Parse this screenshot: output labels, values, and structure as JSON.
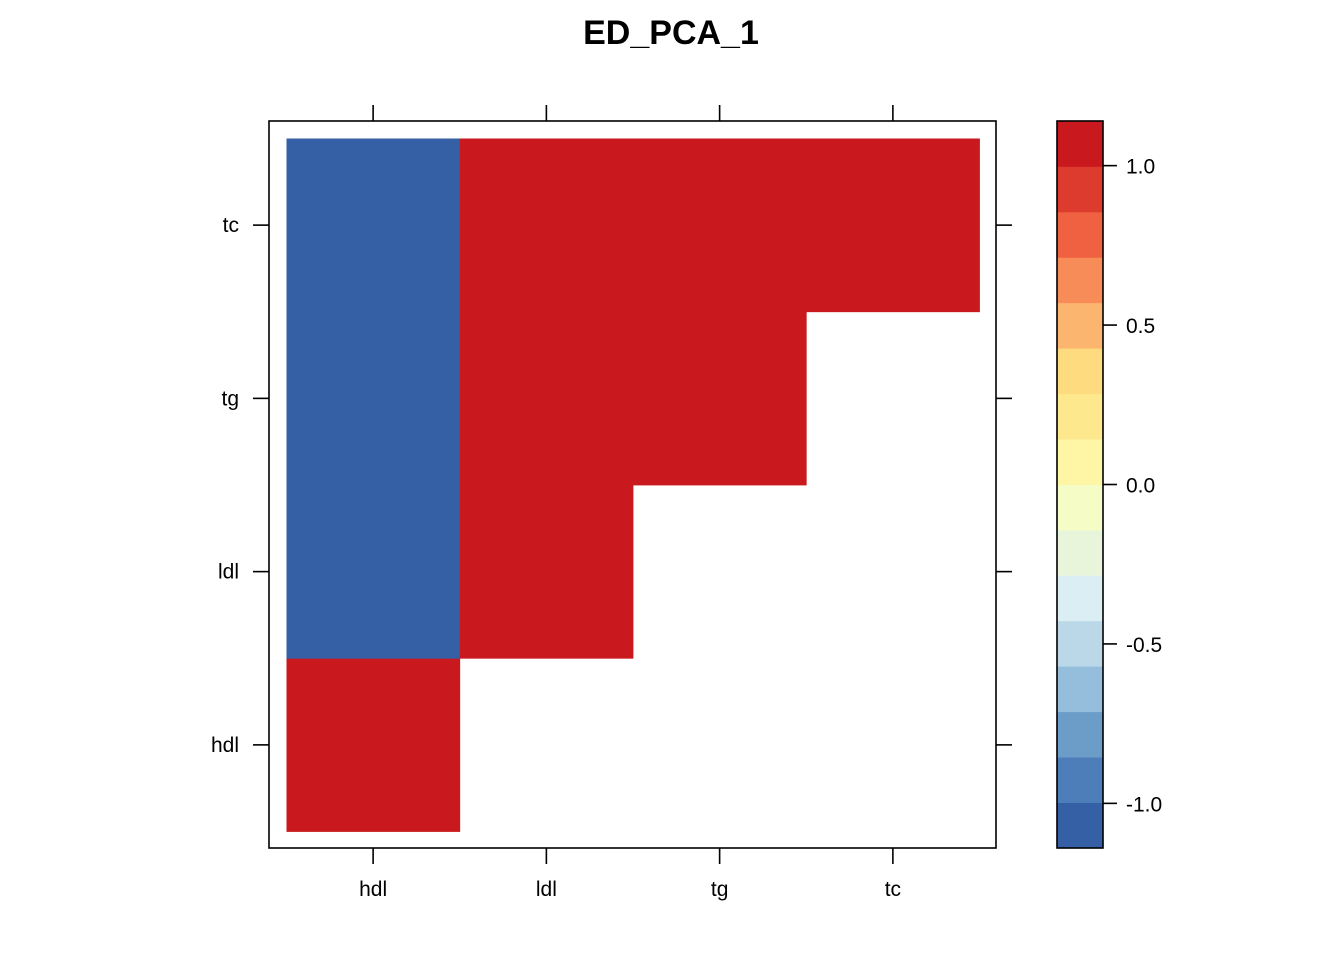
{
  "chart_data": {
    "type": "heatmap",
    "title": "ED_PCA_1",
    "xlabel": "",
    "ylabel": "",
    "x_categories": [
      "hdl",
      "ldl",
      "tg",
      "tc"
    ],
    "y_categories": [
      "hdl",
      "ldl",
      "tg",
      "tc"
    ],
    "cells": [
      {
        "x": "hdl",
        "y": "hdl",
        "value": 1
      },
      {
        "x": "hdl",
        "y": "ldl",
        "value": -1
      },
      {
        "x": "hdl",
        "y": "tg",
        "value": -1
      },
      {
        "x": "hdl",
        "y": "tc",
        "value": -1
      },
      {
        "x": "ldl",
        "y": "ldl",
        "value": 1
      },
      {
        "x": "ldl",
        "y": "tg",
        "value": 1
      },
      {
        "x": "ldl",
        "y": "tc",
        "value": 1
      },
      {
        "x": "tg",
        "y": "tg",
        "value": 1
      },
      {
        "x": "tg",
        "y": "tc",
        "value": 1
      },
      {
        "x": "tc",
        "y": "tc",
        "value": 1
      }
    ],
    "colorbar": {
      "range": [
        -1.14,
        1.14
      ],
      "ticks": [
        -1.0,
        -0.5,
        0.0,
        0.5,
        1.0
      ],
      "tick_labels": [
        "-1.0",
        "-0.5",
        "0.0",
        "0.5",
        "1.0"
      ],
      "colors": [
        "#3660A5",
        "#4D7EBA",
        "#6C9CC8",
        "#94BEDB",
        "#BAD8E8",
        "#DAEEF4",
        "#E9F5DB",
        "#F6FCC6",
        "#FEF6A4",
        "#FEE88E",
        "#FEDB7F",
        "#FCB56E",
        "#F88C58",
        "#EF6140",
        "#DC3B2E",
        "#C9191E"
      ]
    }
  }
}
